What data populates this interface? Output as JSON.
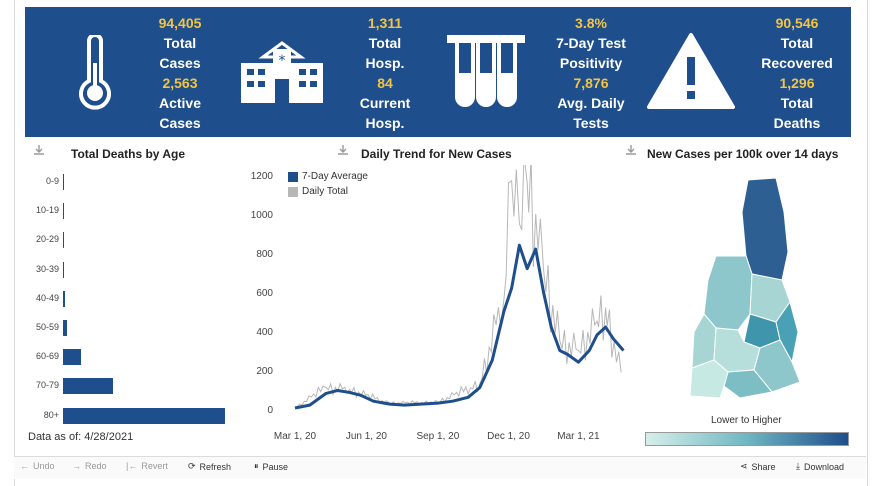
{
  "stats": [
    {
      "value": "94,405",
      "label": "Total Cases",
      "value2": "2,563",
      "label2": "Active Cases"
    },
    {
      "value": "1,311",
      "label": "Total Hosp.",
      "value2": "84",
      "label2": "Current Hosp."
    },
    {
      "value": "3.8%",
      "label": "7-Day Test Positivity",
      "value2": "7,876",
      "label2": "Avg. Daily Tests"
    },
    {
      "value": "90,546",
      "label": "Total Recovered",
      "value2": "1,296",
      "label2": "Total Deaths"
    }
  ],
  "icons": [
    "thermometer-icon",
    "hospital-icon",
    "test-tubes-icon",
    "warning-icon"
  ],
  "deaths_by_age": {
    "title": "Total Deaths by Age",
    "as_of": "Data as of: 4/28/2021",
    "chart_data": {
      "type": "bar",
      "categories": [
        "0-9",
        "10-19",
        "20-29",
        "30-39",
        "40-49",
        "50-59",
        "60-69",
        "70-79",
        "80+"
      ],
      "values": [
        0,
        1,
        2,
        4,
        10,
        24,
        100,
        270,
        885
      ],
      "xlim": [
        0,
        900
      ]
    }
  },
  "daily_trend": {
    "title": "Daily Trend for New Cases",
    "legend": [
      "7-Day Average",
      "Daily Total"
    ],
    "colors": {
      "average": "#1f4e8c",
      "daily": "#b7b7b7"
    },
    "chart_data": {
      "type": "line",
      "x_ticks": [
        "Mar 1, 20",
        "Jun 1, 20",
        "Sep 1, 20",
        "Dec 1, 20",
        "Mar 1, 21"
      ],
      "y_ticks": [
        "0",
        "200",
        "400",
        "600",
        "800",
        "1000",
        "1200"
      ],
      "ylim": [
        0,
        1200
      ],
      "series": [
        {
          "name": "7-Day Average",
          "x": [
            "2020-03-01",
            "2020-03-20",
            "2020-04-10",
            "2020-04-25",
            "2020-05-10",
            "2020-05-25",
            "2020-06-10",
            "2020-07-01",
            "2020-07-20",
            "2020-08-10",
            "2020-09-01",
            "2020-09-20",
            "2020-10-10",
            "2020-10-25",
            "2020-11-10",
            "2020-11-25",
            "2020-12-05",
            "2020-12-15",
            "2020-12-25",
            "2021-01-05",
            "2021-01-15",
            "2021-01-25",
            "2021-02-05",
            "2021-02-15",
            "2021-03-01",
            "2021-03-15",
            "2021-03-25",
            "2021-04-05",
            "2021-04-15",
            "2021-04-28"
          ],
          "values": [
            5,
            20,
            80,
            95,
            85,
            70,
            40,
            25,
            20,
            25,
            30,
            40,
            60,
            110,
            250,
            500,
            620,
            840,
            720,
            820,
            600,
            420,
            300,
            280,
            240,
            300,
            380,
            420,
            360,
            300
          ]
        },
        {
          "name": "Daily Total",
          "x": [
            "2020-03-01",
            "2020-04-10",
            "2020-05-10",
            "2020-07-01",
            "2020-09-01",
            "2020-10-25",
            "2020-11-25",
            "2020-12-05",
            "2020-12-15",
            "2020-12-25",
            "2021-01-05",
            "2021-01-15",
            "2021-02-05",
            "2021-03-01",
            "2021-03-25",
            "2021-04-05",
            "2021-04-28"
          ],
          "values": [
            5,
            110,
            100,
            30,
            35,
            130,
            560,
            1170,
            950,
            1160,
            1000,
            720,
            350,
            300,
            450,
            520,
            140
          ]
        }
      ]
    }
  },
  "map": {
    "title": "New Cases per 100k over 14 days",
    "legend_label": "Lower to Higher",
    "colors": {
      "low": "#c7e9e4",
      "mid": "#6fb7c2",
      "high": "#1f4e8c"
    }
  },
  "toolbar": {
    "undo": "Undo",
    "redo": "Redo",
    "revert": "Revert",
    "refresh": "Refresh",
    "pause": "Pause",
    "share": "Share",
    "download": "Download"
  }
}
